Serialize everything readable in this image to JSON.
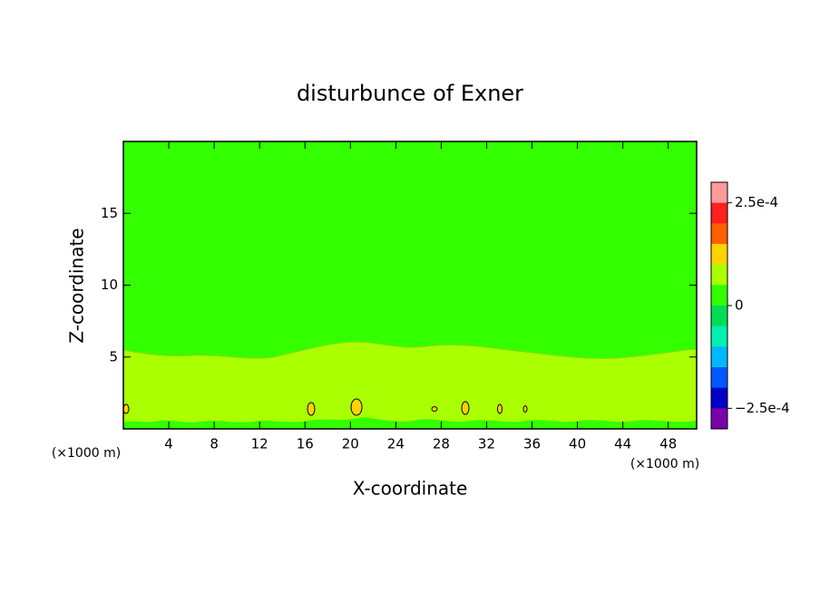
{
  "chart_data": {
    "type": "contour",
    "title": "disturbunce of Exner",
    "x_label": "X-coordinate",
    "y_label": "Z-coordinate",
    "x_unit": "(×1000 m)",
    "x_unit_right": "(×1000 m)",
    "xlim": [
      0,
      50.5
    ],
    "xticks": [
      4,
      8,
      12,
      16,
      20,
      24,
      28,
      32,
      36,
      40,
      44,
      48
    ],
    "ylim": [
      0,
      20
    ],
    "yticks": [
      5,
      10,
      15
    ],
    "colorbar": {
      "clim": [
        -0.0003,
        0.0003
      ],
      "colors": [
        "#ff9a9a",
        "#ff2020",
        "#ff6000",
        "#ffd200",
        "#aaff00",
        "#33ff00",
        "#00dd55",
        "#00f0b0",
        "#00b8ff",
        "#0058ff",
        "#0000c8",
        "#7a00a8"
      ],
      "ticks": [
        {
          "value": 0.00025,
          "label": "2.5e-4"
        },
        0,
        {
          "value": -0.00025,
          "label": "−2.5e-4"
        }
      ]
    }
  }
}
